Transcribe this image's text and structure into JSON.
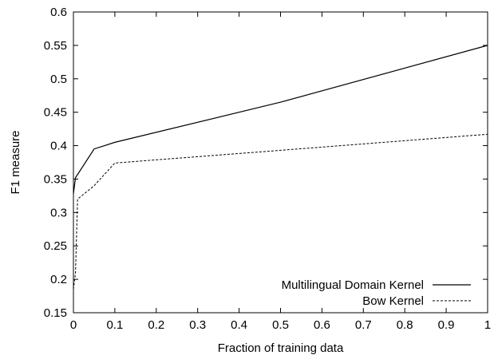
{
  "chart_data": {
    "type": "line",
    "title": "",
    "xlabel": "Fraction of training data",
    "ylabel": "F1 measure",
    "xlim": [
      0,
      1
    ],
    "ylim": [
      0.15,
      0.6
    ],
    "xticks": [
      "0",
      "0.1",
      "0.2",
      "0.3",
      "0.4",
      "0.5",
      "0.6",
      "0.7",
      "0.8",
      "0.9",
      "1"
    ],
    "yticks": [
      "0.15",
      "0.2",
      "0.25",
      "0.3",
      "0.35",
      "0.4",
      "0.45",
      "0.5",
      "0.55",
      "0.6"
    ],
    "grid": false,
    "legend_position": "bottom-right",
    "series": [
      {
        "name": "Multilingual Domain Kernel",
        "style": "solid",
        "x": [
          0,
          0.005,
          0.05,
          0.1,
          0.5,
          1
        ],
        "y": [
          0.328,
          0.352,
          0.395,
          0.405,
          0.465,
          0.55
        ]
      },
      {
        "name": "Bow Kernel",
        "style": "dashed",
        "x": [
          0,
          0.005,
          0.01,
          0.05,
          0.1,
          0.5,
          1
        ],
        "y": [
          0.185,
          0.21,
          0.32,
          0.34,
          0.374,
          0.393,
          0.417
        ]
      }
    ]
  }
}
